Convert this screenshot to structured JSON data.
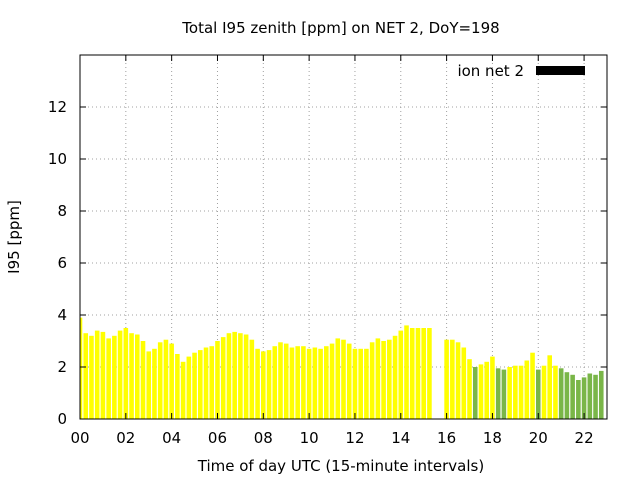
{
  "chart_data": {
    "type": "bar",
    "title": "Total I95 zenith [ppm] on NET 2, DoY=198",
    "xlabel": "Time of day UTC (15-minute intervals)",
    "ylabel": "I95 [ppm]",
    "xlim": [
      0,
      23
    ],
    "ylim": [
      0,
      14
    ],
    "xticks": [
      0,
      2,
      4,
      6,
      8,
      10,
      12,
      14,
      16,
      18,
      20,
      22
    ],
    "xtick_labels": [
      "00",
      "02",
      "04",
      "06",
      "08",
      "10",
      "12",
      "14",
      "16",
      "18",
      "20",
      "22"
    ],
    "yticks": [
      0,
      2,
      4,
      6,
      8,
      10,
      12
    ],
    "grid": true,
    "legend": {
      "position": "top-right",
      "label": "ion net 2",
      "color": "#000000"
    },
    "bar_width_hours": 0.2,
    "colors": {
      "yellow": "#ffff00",
      "green": "#7ab648"
    },
    "series": [
      {
        "times": [
          0.0,
          0.25,
          0.5,
          0.75,
          1.0,
          1.25,
          1.5,
          1.75,
          2.0,
          2.25,
          2.5,
          2.75,
          3.0,
          3.25,
          3.5,
          3.75,
          4.0,
          4.25,
          4.5,
          4.75,
          5.0,
          5.25,
          5.5,
          5.75,
          6.0,
          6.25,
          6.5,
          6.75,
          7.0,
          7.25,
          7.5,
          7.75,
          8.0,
          8.25,
          8.5,
          8.75,
          9.0,
          9.25,
          9.5,
          9.75,
          10.0,
          10.25,
          10.5,
          10.75,
          11.0,
          11.25,
          11.5,
          11.75,
          12.0,
          12.25,
          12.5,
          12.75,
          13.0,
          13.25,
          13.5,
          13.75,
          14.0,
          14.25,
          14.5,
          14.75,
          15.0,
          15.25,
          16.0,
          16.25,
          16.5,
          16.75,
          17.0,
          17.25,
          17.5,
          17.75,
          18.0,
          18.25,
          18.5,
          18.75,
          19.0,
          19.25,
          19.5,
          19.75,
          20.0,
          20.25,
          20.5,
          20.75,
          21.0,
          21.25,
          21.5,
          21.75,
          22.0,
          22.25,
          22.5,
          22.75
        ],
        "values": [
          3.9,
          3.3,
          3.2,
          3.4,
          3.35,
          3.1,
          3.2,
          3.4,
          3.5,
          3.3,
          3.25,
          3.0,
          2.6,
          2.7,
          2.95,
          3.05,
          2.9,
          2.5,
          2.2,
          2.4,
          2.55,
          2.65,
          2.75,
          2.8,
          3.0,
          3.15,
          3.3,
          3.35,
          3.3,
          3.25,
          3.05,
          2.7,
          2.6,
          2.65,
          2.8,
          2.95,
          2.9,
          2.75,
          2.8,
          2.8,
          2.7,
          2.75,
          2.7,
          2.8,
          2.9,
          3.1,
          3.05,
          2.9,
          2.7,
          2.7,
          2.7,
          2.95,
          3.1,
          3.0,
          3.05,
          3.2,
          3.4,
          3.6,
          3.5,
          3.5,
          3.5,
          3.5,
          3.05,
          3.05,
          2.95,
          2.75,
          2.3,
          2.0,
          2.1,
          2.2,
          2.4,
          1.95,
          1.9,
          2.0,
          2.05,
          2.05,
          2.25,
          2.55,
          1.9,
          2.05,
          2.45,
          2.05,
          1.95,
          1.8,
          1.7,
          1.5,
          1.6,
          1.75,
          1.7,
          1.85
        ],
        "colors": [
          "yellow",
          "yellow",
          "yellow",
          "yellow",
          "yellow",
          "yellow",
          "yellow",
          "yellow",
          "yellow",
          "yellow",
          "yellow",
          "yellow",
          "yellow",
          "yellow",
          "yellow",
          "yellow",
          "yellow",
          "yellow",
          "yellow",
          "yellow",
          "yellow",
          "yellow",
          "yellow",
          "yellow",
          "yellow",
          "yellow",
          "yellow",
          "yellow",
          "yellow",
          "yellow",
          "yellow",
          "yellow",
          "yellow",
          "yellow",
          "yellow",
          "yellow",
          "yellow",
          "yellow",
          "yellow",
          "yellow",
          "yellow",
          "yellow",
          "yellow",
          "yellow",
          "yellow",
          "yellow",
          "yellow",
          "yellow",
          "yellow",
          "yellow",
          "yellow",
          "yellow",
          "yellow",
          "yellow",
          "yellow",
          "yellow",
          "yellow",
          "yellow",
          "yellow",
          "yellow",
          "yellow",
          "yellow",
          "yellow",
          "yellow",
          "yellow",
          "yellow",
          "yellow",
          "green",
          "yellow",
          "yellow",
          "yellow",
          "green",
          "green",
          "yellow",
          "yellow",
          "yellow",
          "yellow",
          "yellow",
          "green",
          "yellow",
          "yellow",
          "yellow",
          "green",
          "green",
          "green",
          "green",
          "green",
          "green",
          "green",
          "green"
        ]
      }
    ]
  }
}
